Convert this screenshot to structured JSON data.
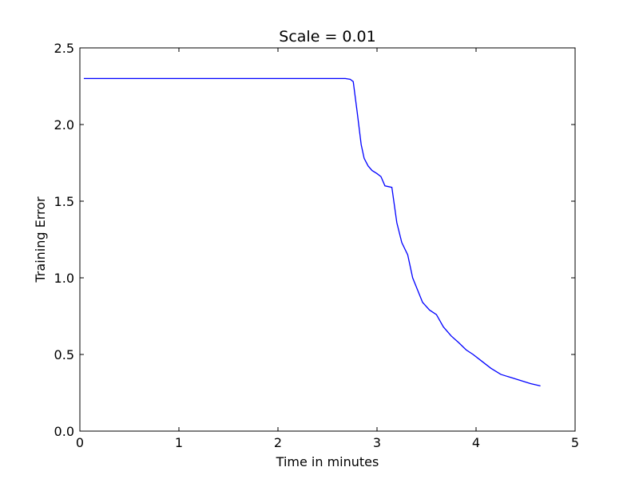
{
  "chart_data": {
    "type": "line",
    "title": "Scale = 0.01",
    "xlabel": "Time in minutes",
    "ylabel": "Training Error",
    "xlim": [
      0,
      5
    ],
    "ylim": [
      0,
      2.5
    ],
    "xticks": [
      0,
      1,
      2,
      3,
      4,
      5
    ],
    "xtick_labels": [
      "0",
      "1",
      "2",
      "3",
      "4",
      "5"
    ],
    "yticks": [
      0.0,
      0.5,
      1.0,
      1.5,
      2.0,
      2.5
    ],
    "ytick_labels": [
      "0.0",
      "0.5",
      "1.0",
      "1.5",
      "2.0",
      "2.5"
    ],
    "grid": false,
    "line_color": "#0000ff",
    "series": [
      {
        "x": [
          0.04,
          0.5,
          1.0,
          1.5,
          2.0,
          2.5,
          2.68,
          2.73,
          2.76,
          2.8,
          2.84,
          2.87,
          2.91,
          2.95,
          3.0,
          3.04,
          3.08,
          3.15,
          3.2,
          3.25,
          3.31,
          3.36,
          3.41,
          3.46,
          3.53,
          3.6,
          3.67,
          3.75,
          3.82,
          3.9,
          3.97,
          4.05,
          4.15,
          4.25,
          4.35,
          4.45,
          4.55,
          4.65
        ],
        "y": [
          2.3,
          2.3,
          2.3,
          2.3,
          2.3,
          2.3,
          2.3,
          2.295,
          2.28,
          2.08,
          1.87,
          1.78,
          1.73,
          1.7,
          1.68,
          1.66,
          1.6,
          1.59,
          1.36,
          1.23,
          1.15,
          1.0,
          0.92,
          0.84,
          0.79,
          0.76,
          0.68,
          0.62,
          0.58,
          0.53,
          0.5,
          0.46,
          0.41,
          0.37,
          0.35,
          0.33,
          0.31,
          0.295
        ]
      }
    ]
  }
}
